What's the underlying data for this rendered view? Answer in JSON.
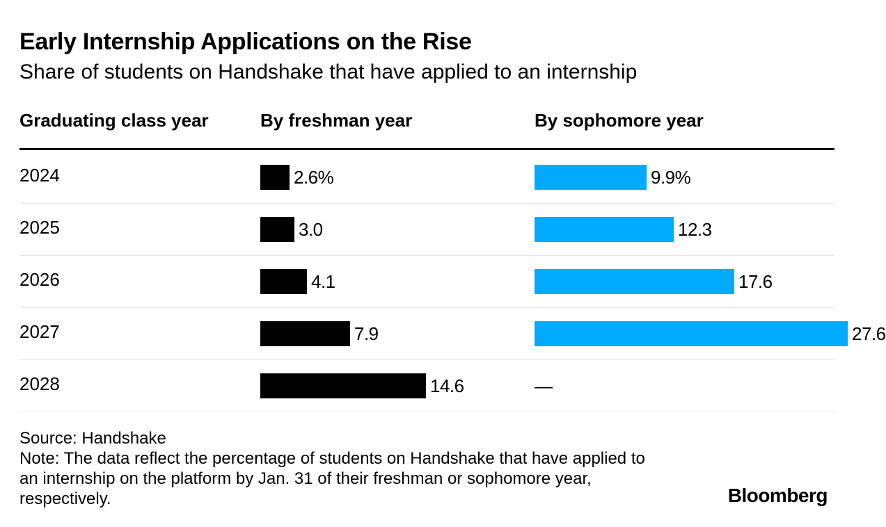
{
  "title": "Early Internship Applications on the Rise",
  "subtitle": "Share of students on Handshake that have applied to an internship",
  "columns": {
    "year": "Graduating class year",
    "freshman": "By freshman year",
    "sophomore": "By sophomore year"
  },
  "colors": {
    "freshman": "#000000",
    "sophomore": "#00aaff"
  },
  "chart_data": {
    "type": "bar",
    "orientation": "horizontal",
    "categories": [
      "2024",
      "2025",
      "2026",
      "2027",
      "2028"
    ],
    "series": [
      {
        "name": "By freshman year",
        "values": [
          2.6,
          3.0,
          4.1,
          7.9,
          14.6
        ],
        "labels": [
          "2.6%",
          "3.0",
          "4.1",
          "7.9",
          "14.6"
        ]
      },
      {
        "name": "By sophomore year",
        "values": [
          9.9,
          12.3,
          17.6,
          27.6,
          null
        ],
        "labels": [
          "9.9%",
          "12.3",
          "17.6",
          "27.6",
          "—"
        ]
      }
    ],
    "unit": "%"
  },
  "source": "Source: Handshake",
  "note": "Note: The data reflect the percentage of students on Handshake that have applied to an internship on the platform by Jan. 31 of their freshman or sophomore year, respectively.",
  "logo": "Bloomberg"
}
